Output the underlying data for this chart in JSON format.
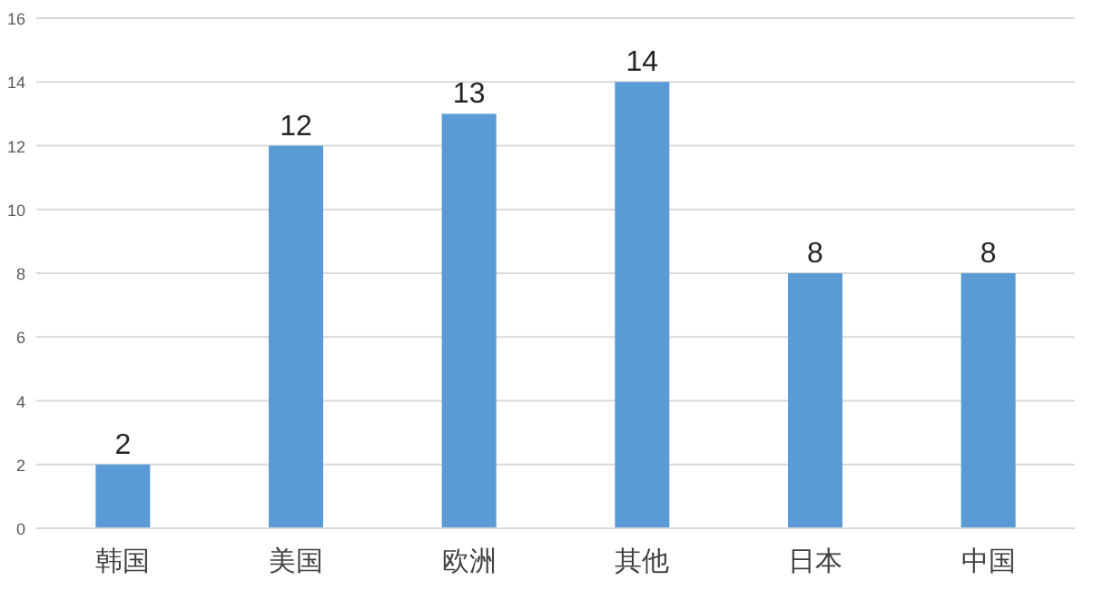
{
  "chart_data": {
    "type": "bar",
    "categories": [
      "韩国",
      "美国",
      "欧洲",
      "其他",
      "日本",
      "中国"
    ],
    "values": [
      2,
      12,
      13,
      14,
      8,
      8
    ],
    "color": "#5b9bd5",
    "ylim": [
      0,
      16
    ],
    "yticks": [
      0,
      2,
      4,
      6,
      8,
      10,
      12,
      14,
      16
    ],
    "grid": "y",
    "data_labels": true
  }
}
